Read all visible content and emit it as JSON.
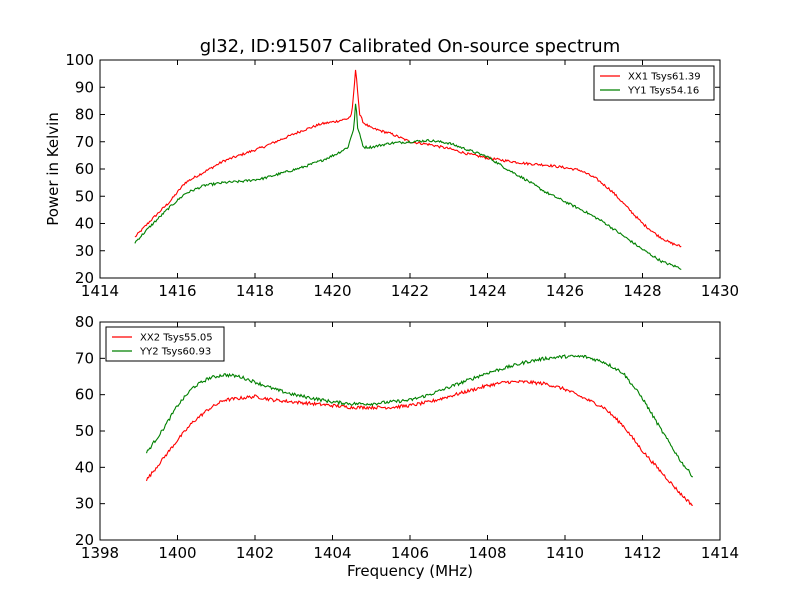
{
  "chart_title": "gl32, ID:91507 Calibrated On-source spectrum",
  "chart_data": [
    {
      "type": "line",
      "title": "gl32, ID:91507 Calibrated On-source spectrum",
      "xlabel": "",
      "ylabel": "Power in Kelvin",
      "xlim": [
        1414,
        1430
      ],
      "ylim": [
        20,
        100
      ],
      "xticks": [
        1414,
        1416,
        1418,
        1420,
        1422,
        1424,
        1426,
        1428,
        1430
      ],
      "yticks": [
        20,
        30,
        40,
        50,
        60,
        70,
        80,
        90,
        100
      ],
      "xtick_labels": [
        "1414",
        "1416",
        "1418",
        "1420",
        "1422",
        "1424",
        "1426",
        "1428",
        "1430"
      ],
      "ytick_labels": [
        "20",
        "30",
        "40",
        "50",
        "60",
        "70",
        "80",
        "90",
        "100"
      ],
      "grid": false,
      "legend_position": "top-right",
      "series": [
        {
          "name": "XX1 Tsys61.39",
          "color": "#ff0000",
          "x": [
            1414.9,
            1415.3,
            1415.8,
            1416.2,
            1416.7,
            1417.2,
            1417.7,
            1418.2,
            1418.7,
            1419.2,
            1419.7,
            1420.1,
            1420.4,
            1420.5,
            1420.6,
            1420.7,
            1420.8,
            1421.0,
            1421.5,
            1422.0,
            1422.5,
            1423.0,
            1423.5,
            1424.0,
            1424.5,
            1425.0,
            1425.5,
            1426.0,
            1426.4,
            1426.8,
            1427.2,
            1427.6,
            1428.0,
            1428.4,
            1428.7,
            1429.0
          ],
          "y": [
            35,
            41,
            48,
            55,
            59,
            63,
            65.5,
            68,
            71,
            74,
            76.5,
            77.5,
            78.5,
            80,
            97,
            80,
            77,
            75,
            73,
            70,
            69,
            67.5,
            65.5,
            64,
            63,
            62,
            61.5,
            60.5,
            59.5,
            56.5,
            52,
            46,
            40,
            35.5,
            33,
            31.5
          ]
        },
        {
          "name": "YY1 Tsys54.16",
          "color": "#008000",
          "x": [
            1414.9,
            1415.3,
            1415.8,
            1416.2,
            1416.7,
            1417.2,
            1417.7,
            1418.2,
            1418.7,
            1419.2,
            1419.7,
            1420.1,
            1420.4,
            1420.55,
            1420.6,
            1420.65,
            1420.8,
            1421.0,
            1421.5,
            1422.0,
            1422.5,
            1423.0,
            1423.5,
            1424.0,
            1424.5,
            1425.0,
            1425.5,
            1426.0,
            1426.5,
            1427.0,
            1427.5,
            1428.0,
            1428.5,
            1429.0
          ],
          "y": [
            33,
            39,
            46,
            51,
            54,
            55,
            55.5,
            56.5,
            58.5,
            60.5,
            63,
            65.5,
            68,
            75,
            85,
            75,
            68,
            68,
            69.5,
            70,
            70.5,
            69.5,
            67,
            64.5,
            60,
            56,
            51.5,
            48,
            44.5,
            40.5,
            35.5,
            30.5,
            26,
            23.5
          ]
        }
      ]
    },
    {
      "type": "line",
      "title": "",
      "xlabel": "Frequency (MHz)",
      "ylabel": "",
      "xlim": [
        1398,
        1414
      ],
      "ylim": [
        20,
        80
      ],
      "xticks": [
        1398,
        1400,
        1402,
        1404,
        1406,
        1408,
        1410,
        1412,
        1414
      ],
      "yticks": [
        20,
        30,
        40,
        50,
        60,
        70,
        80
      ],
      "xtick_labels": [
        "1398",
        "1400",
        "1402",
        "1404",
        "1406",
        "1408",
        "1410",
        "1412",
        "1414"
      ],
      "ytick_labels": [
        "20",
        "30",
        "40",
        "50",
        "60",
        "70",
        "80"
      ],
      "grid": false,
      "legend_position": "top-left",
      "series": [
        {
          "name": "XX2 Tsys55.05",
          "color": "#ff0000",
          "x": [
            1399.2,
            1399.6,
            1400.0,
            1400.4,
            1400.8,
            1401.2,
            1401.6,
            1402.0,
            1402.5,
            1403.0,
            1403.5,
            1404.0,
            1404.5,
            1405.0,
            1405.5,
            1406.0,
            1406.5,
            1407.0,
            1407.5,
            1408.0,
            1408.5,
            1409.0,
            1409.5,
            1410.0,
            1410.5,
            1411.0,
            1411.5,
            1412.0,
            1412.5,
            1413.0,
            1413.3
          ],
          "y": [
            36.5,
            42,
            47.5,
            52.5,
            56,
            58.5,
            59,
            59.5,
            58.5,
            58,
            57.5,
            57,
            56.5,
            56.5,
            56.5,
            57,
            58,
            59.5,
            61,
            62.5,
            63.5,
            63.5,
            63,
            61.5,
            59,
            56.5,
            51.5,
            44.5,
            38.5,
            32.5,
            29.5
          ]
        },
        {
          "name": "YY2 Tsys60.93",
          "color": "#008000",
          "x": [
            1399.2,
            1399.6,
            1400.0,
            1400.4,
            1400.8,
            1401.2,
            1401.6,
            1402.0,
            1402.5,
            1403.0,
            1403.5,
            1404.0,
            1404.5,
            1405.0,
            1405.5,
            1406.0,
            1406.5,
            1407.0,
            1407.5,
            1408.0,
            1408.5,
            1409.0,
            1409.5,
            1410.0,
            1410.5,
            1411.0,
            1411.5,
            1412.0,
            1412.5,
            1413.0,
            1413.3
          ],
          "y": [
            44,
            50,
            57,
            62,
            64.5,
            65.5,
            65,
            63.5,
            61.5,
            60,
            59,
            58,
            57.5,
            57.5,
            58,
            58.5,
            60,
            62,
            64,
            66,
            67.5,
            69,
            70,
            70.5,
            70.5,
            69,
            66,
            59,
            50,
            41.5,
            37.5
          ]
        }
      ]
    }
  ]
}
